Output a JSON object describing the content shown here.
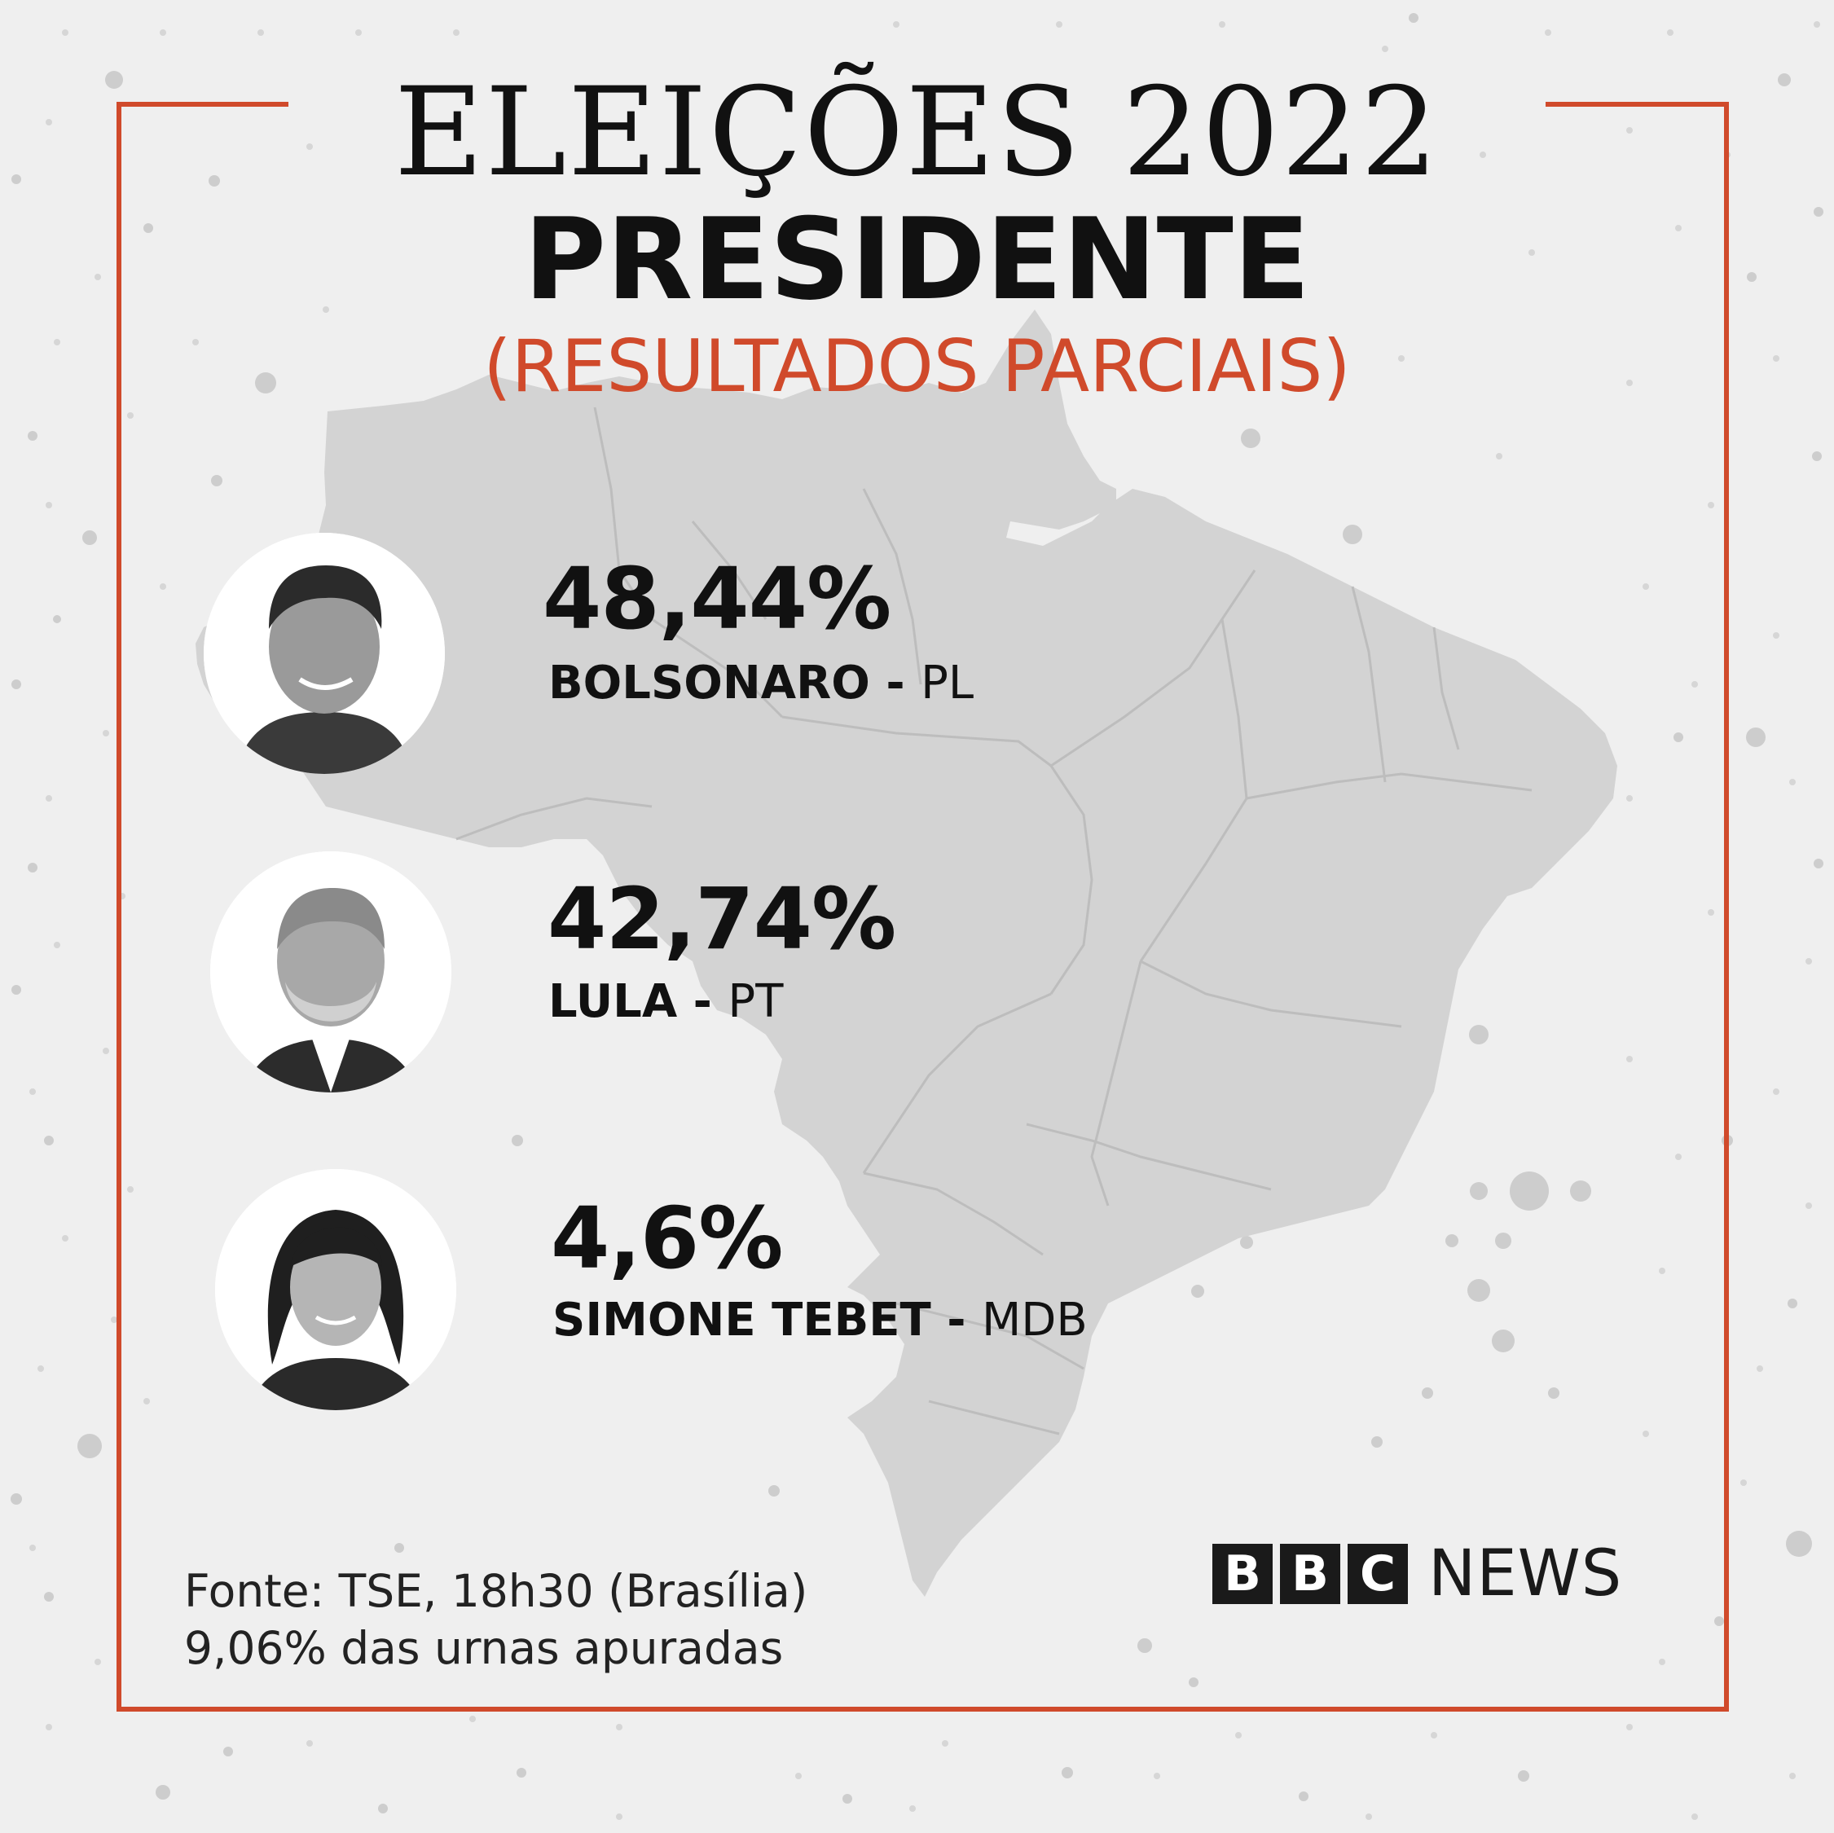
{
  "header": {
    "line1": "ELEIÇÕES 2022",
    "line2": "PRESIDENTE",
    "line3": "(RESULTADOS PARCIAIS)"
  },
  "candidates": [
    {
      "name": "BOLSONARO",
      "separator": " - ",
      "party": "PL",
      "percent": "48,44%"
    },
    {
      "name": "LULA",
      "separator": " - ",
      "party": "PT",
      "percent": "42,74%"
    },
    {
      "name": "SIMONE TEBET",
      "separator": " - ",
      "party": "MDB",
      "percent": "4,6%"
    }
  ],
  "footer": {
    "source": "Fonte: TSE, 18h30 (Brasília)",
    "counted": "9,06% das urnas apuradas"
  },
  "brand": {
    "letters": [
      "B",
      "B",
      "C"
    ],
    "word": "NEWS"
  },
  "colors": {
    "accent": "#d04a2b",
    "background": "#efefef",
    "map": "#d3d3d3",
    "text": "#111111"
  }
}
